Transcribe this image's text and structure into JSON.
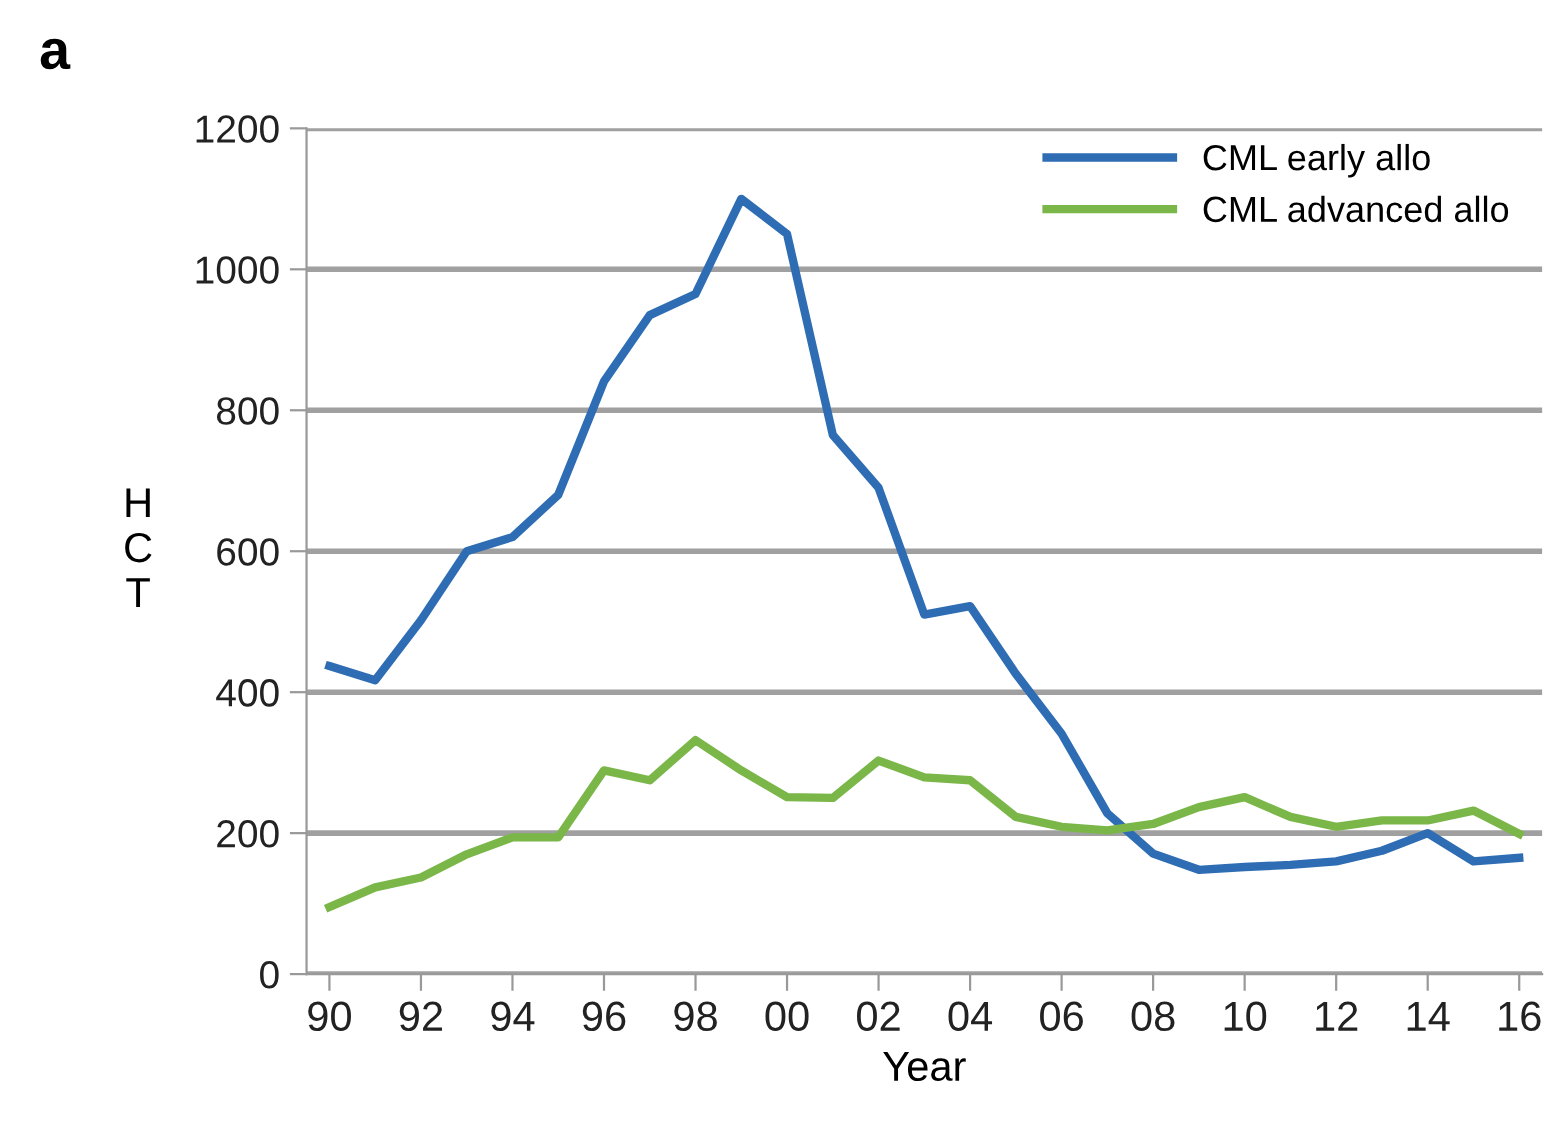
{
  "chart_data": {
    "type": "line",
    "title": "a",
    "xlabel": "Year",
    "ylabel": "H\nC\nT",
    "x": [
      1990,
      1991,
      1992,
      1993,
      1994,
      1995,
      1996,
      1997,
      1998,
      1999,
      2000,
      2001,
      2002,
      2003,
      2004,
      2005,
      2006,
      2007,
      2008,
      2009,
      2010,
      2011,
      2012,
      2013,
      2014,
      2015,
      2016
    ],
    "series": [
      {
        "name": "CML early allo",
        "color": "#2e6db4",
        "values": [
          437,
          417,
          502,
          600,
          620,
          680,
          841,
          935,
          965,
          1100,
          1050,
          765,
          690,
          510,
          522,
          426,
          341,
          228,
          171,
          148,
          152,
          155,
          160,
          175,
          200,
          160,
          165
        ]
      },
      {
        "name": "CML advanced allo",
        "color": "#7ab648",
        "values": [
          95,
          123,
          137,
          170,
          194,
          194,
          289,
          275,
          332,
          289,
          251,
          250,
          303,
          279,
          275,
          223,
          209,
          204,
          213,
          237,
          251,
          223,
          209,
          218,
          218,
          232,
          199
        ]
      }
    ],
    "xlim": [
      1989.5,
      2016.5
    ],
    "xticks": [
      {
        "value": 1990,
        "label": "90"
      },
      {
        "value": 1992,
        "label": "92"
      },
      {
        "value": 1994,
        "label": "94"
      },
      {
        "value": 1996,
        "label": "96"
      },
      {
        "value": 1998,
        "label": "98"
      },
      {
        "value": 2000,
        "label": "00"
      },
      {
        "value": 2002,
        "label": "02"
      },
      {
        "value": 2004,
        "label": "04"
      },
      {
        "value": 2006,
        "label": "06"
      },
      {
        "value": 2008,
        "label": "08"
      },
      {
        "value": 2010,
        "label": "10"
      },
      {
        "value": 2012,
        "label": "12"
      },
      {
        "value": 2014,
        "label": "14"
      },
      {
        "value": 2016,
        "label": "16"
      }
    ],
    "ylim": [
      0,
      1200
    ],
    "yticks": [
      0,
      200,
      400,
      600,
      800,
      1000,
      1200
    ],
    "grid": "y",
    "legend": "top right",
    "marker": "none",
    "line_style": "solid"
  }
}
